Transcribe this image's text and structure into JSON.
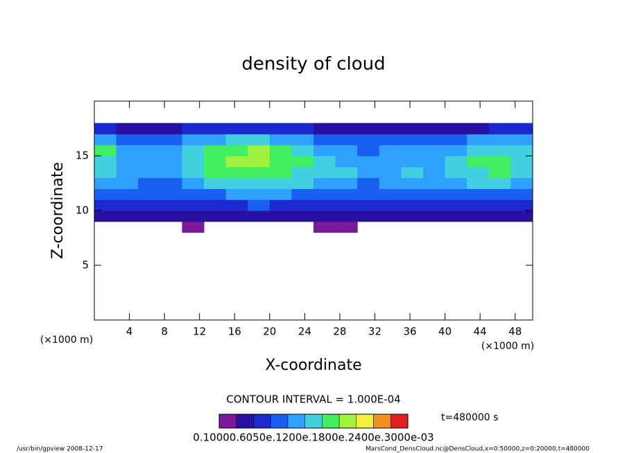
{
  "chart_data": {
    "type": "contour",
    "title": "density of cloud",
    "x_label": "X-coordinate",
    "y_label": "Z-coordinate",
    "x_unit": "(×1000 m)",
    "xlim": [
      0,
      50
    ],
    "xticks": [
      4,
      8,
      12,
      16,
      20,
      24,
      28,
      32,
      36,
      40,
      44,
      48
    ],
    "ylim": [
      0,
      20
    ],
    "yticks": [
      5,
      10,
      15
    ],
    "x": [
      1.25,
      3.75,
      6.25,
      8.75,
      11.25,
      13.75,
      16.25,
      18.75,
      21.25,
      23.75,
      26.25,
      28.75,
      31.25,
      33.75,
      36.25,
      38.75,
      41.25,
      43.75,
      46.25,
      48.75
    ],
    "z": [
      8.5,
      9.5,
      10.5,
      11.5,
      12.5,
      13.5,
      14.5,
      15.5,
      16.5,
      17.5
    ],
    "values": [
      [
        null,
        null,
        null,
        null,
        0.02,
        null,
        null,
        null,
        null,
        null,
        0.02,
        0.02,
        null,
        null,
        null,
        null,
        null,
        null,
        null,
        null
      ],
      [
        0.04,
        0.04,
        0.03,
        0.05,
        0.05,
        0.04,
        0.04,
        0.04,
        0.04,
        0.04,
        0.05,
        0.04,
        0.04,
        0.05,
        0.04,
        0.04,
        0.04,
        0.05,
        0.04,
        0.04
      ],
      [
        0.08,
        0.08,
        0.07,
        0.06,
        0.07,
        0.08,
        0.08,
        0.09,
        0.08,
        0.08,
        0.08,
        0.08,
        0.07,
        0.08,
        0.08,
        0.08,
        0.07,
        0.08,
        0.08,
        0.08
      ],
      [
        0.1,
        0.1,
        0.09,
        0.09,
        0.1,
        0.11,
        0.12,
        0.12,
        0.12,
        0.11,
        0.11,
        0.1,
        0.09,
        0.1,
        0.1,
        0.1,
        0.1,
        0.11,
        0.11,
        0.1
      ],
      [
        0.13,
        0.12,
        0.11,
        0.1,
        0.14,
        0.16,
        0.17,
        0.17,
        0.16,
        0.15,
        0.14,
        0.14,
        0.11,
        0.13,
        0.14,
        0.13,
        0.13,
        0.15,
        0.16,
        0.14
      ],
      [
        0.15,
        0.14,
        0.12,
        0.12,
        0.17,
        0.19,
        0.19,
        0.2,
        0.19,
        0.17,
        0.16,
        0.15,
        0.12,
        0.14,
        0.15,
        0.14,
        0.15,
        0.17,
        0.18,
        0.16
      ],
      [
        0.17,
        0.14,
        0.13,
        0.13,
        0.16,
        0.2,
        0.21,
        0.21,
        0.2,
        0.18,
        0.15,
        0.14,
        0.12,
        0.13,
        0.14,
        0.14,
        0.15,
        0.18,
        0.19,
        0.17
      ],
      [
        0.18,
        0.13,
        0.12,
        0.12,
        0.15,
        0.19,
        0.2,
        0.21,
        0.19,
        0.16,
        0.13,
        0.12,
        0.11,
        0.12,
        0.13,
        0.13,
        0.14,
        0.16,
        0.17,
        0.16
      ],
      [
        0.14,
        0.11,
        0.1,
        0.1,
        0.12,
        0.14,
        0.16,
        0.16,
        0.14,
        0.12,
        0.1,
        0.1,
        0.09,
        0.1,
        0.11,
        0.1,
        0.11,
        0.12,
        0.12,
        0.12
      ],
      [
        0.06,
        0.05,
        0.05,
        0.05,
        0.06,
        0.07,
        0.07,
        0.07,
        0.06,
        0.06,
        0.05,
        0.05,
        0.05,
        0.05,
        0.05,
        0.05,
        0.05,
        0.05,
        0.06,
        0.06
      ]
    ],
    "colorbar": {
      "levels": [
        0,
        0.03,
        0.06,
        0.09,
        0.12,
        0.15,
        0.18,
        0.21,
        0.24,
        0.27,
        0.3,
        0.33
      ],
      "colors": [
        "#7a1a9a",
        "#2a10a0",
        "#1a2ad0",
        "#1a60f0",
        "#30a0ff",
        "#40d0e0",
        "#40f060",
        "#a0f040",
        "#f0f040",
        "#f09020",
        "#e02020"
      ],
      "label": "0.10000.6050e.1200e.1800e.2400e.3000e-03"
    },
    "contour_interval": "CONTOUR INTERVAL = 1.000E-04",
    "time": "t=480000 s",
    "footer_left": "/usr/bin/gpview   2008-12-17",
    "footer_right": "MarsCond_DensCloud.nc@DensCloud,x=0:50000,z=0:20000,t=480000"
  }
}
